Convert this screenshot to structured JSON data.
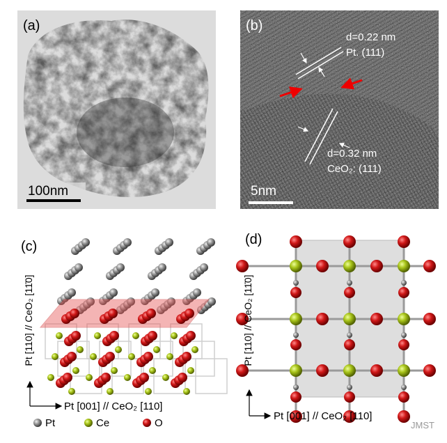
{
  "panel_a": {
    "label": "(a)",
    "scale_bar": "100nm"
  },
  "panel_b": {
    "label": "(b)",
    "scale_bar": "5nm",
    "spacing_1": "d=0.22 nm",
    "plane_1": "Pt. (111)",
    "spacing_2": "d=0.32 nm",
    "plane_2": "CeO₂: (111)"
  },
  "panel_c": {
    "label": "(c)",
    "vertical_axis": "Pt [110] // CeO₂ [11̄0]",
    "horizontal_axis": "Pt [001] // CeO₂ [110]",
    "legend": [
      "Pt",
      "Ce",
      "O"
    ]
  },
  "panel_d": {
    "label": "(d)",
    "vertical_axis": "Pt [110] // CeO₂ [11̄0]",
    "horizontal_axis": "Pt [001] // CeO₂ [110]"
  },
  "watermark": "JMST"
}
